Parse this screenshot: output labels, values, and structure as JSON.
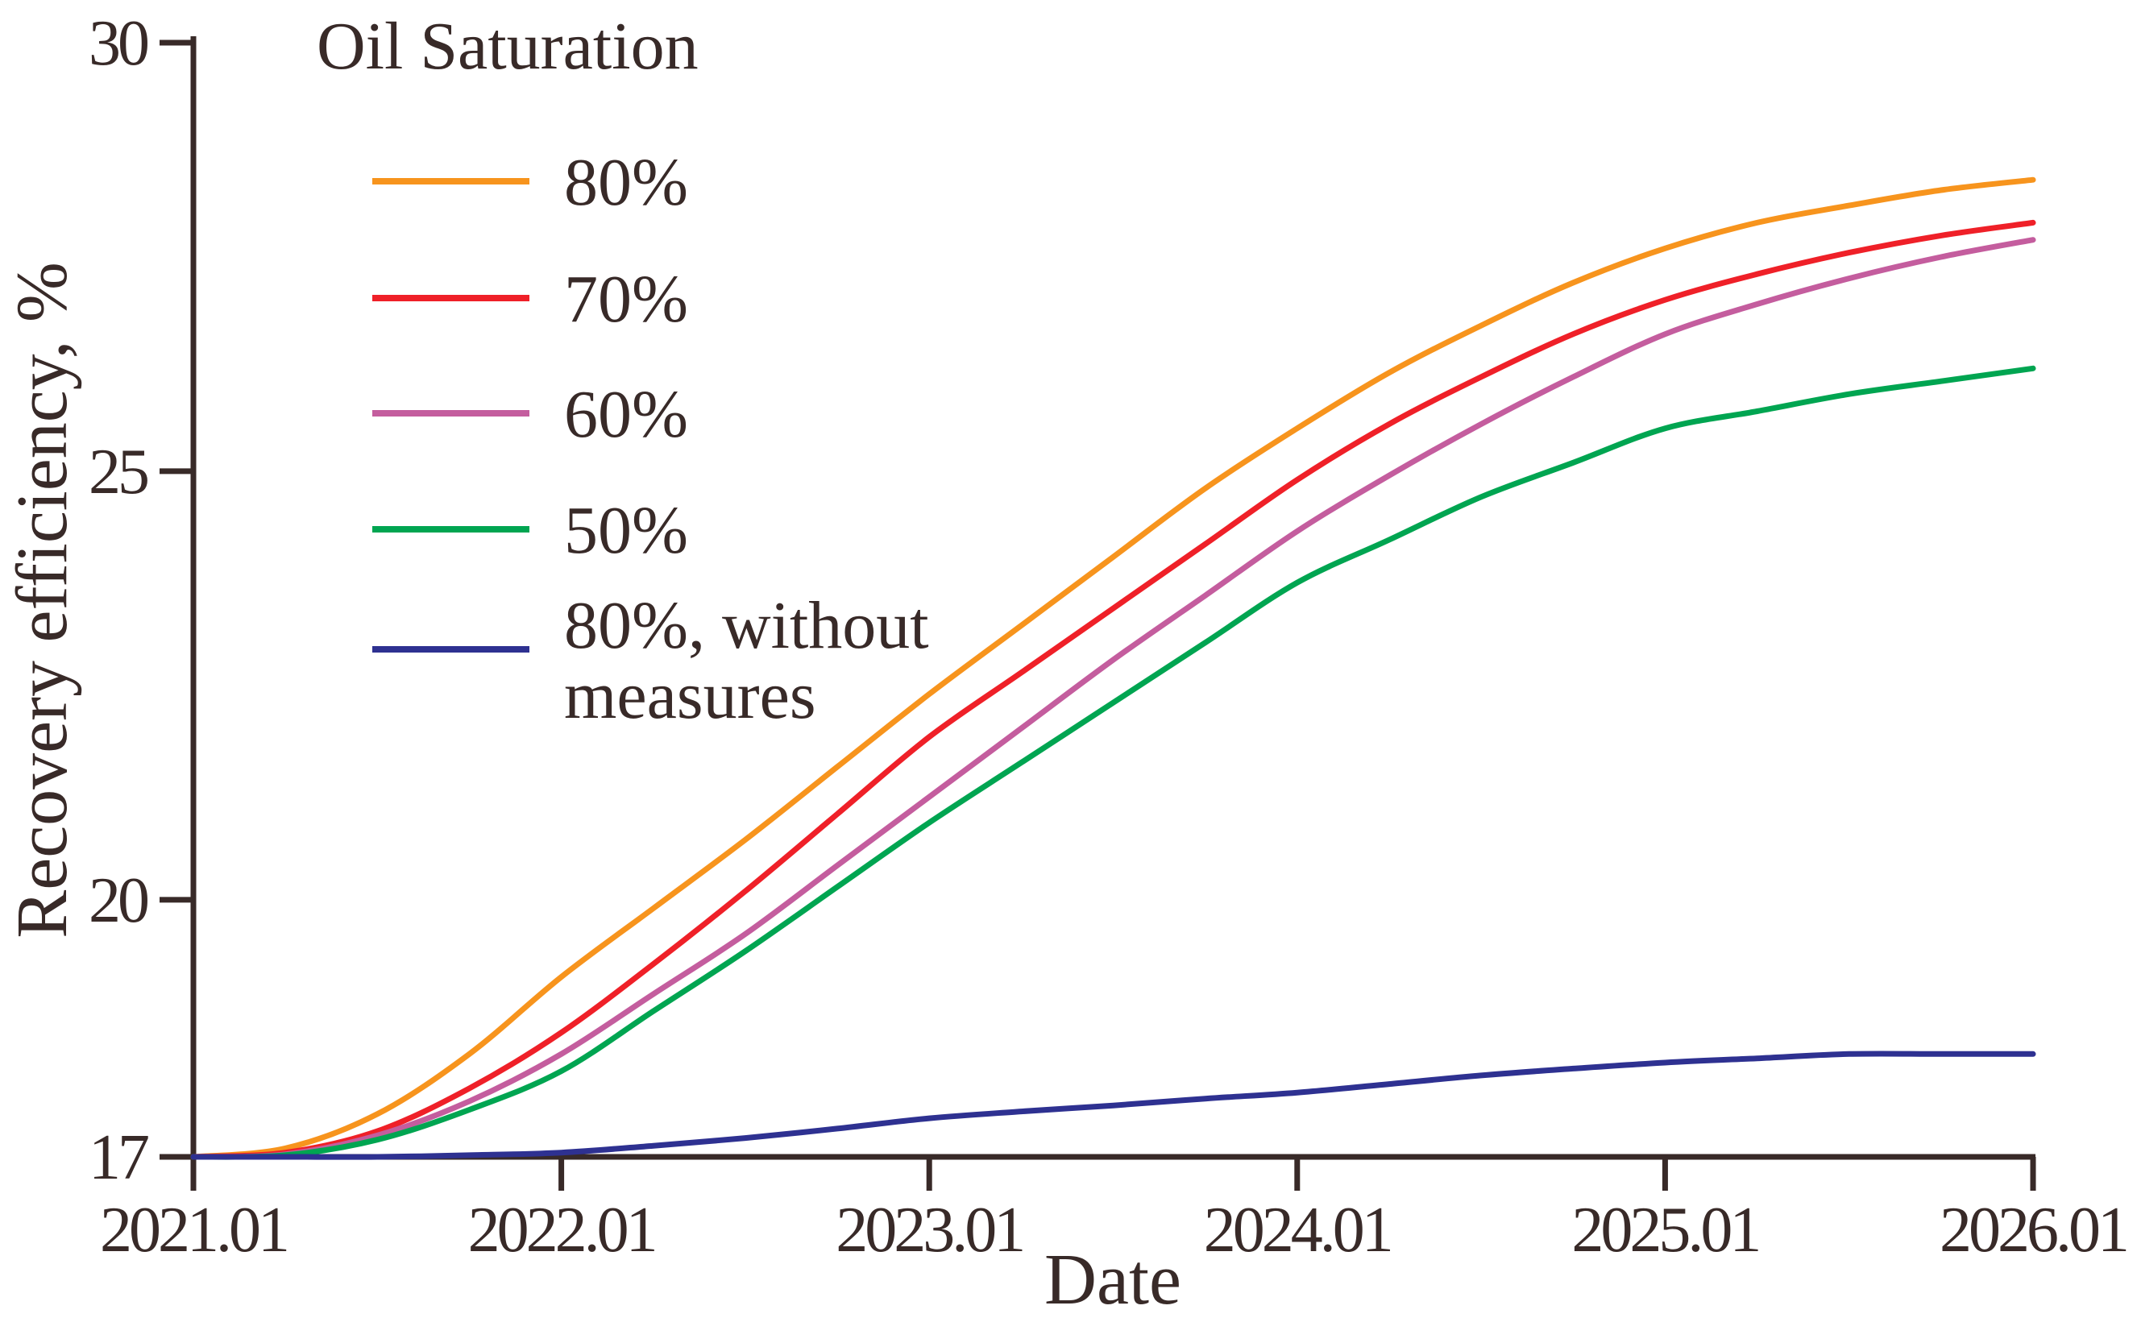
{
  "chart_data": {
    "type": "line",
    "title": "",
    "legend_title": "Oil Saturation",
    "xlabel": "Date",
    "ylabel": "Recovery efficiency, %",
    "xlim": [
      2021.0,
      2026.0
    ],
    "ylim": [
      17,
      30
    ],
    "grid": false,
    "legend_position": "top-left-inside",
    "x_tick_values": [
      2021,
      2022,
      2023,
      2024,
      2025,
      2026
    ],
    "x_tick_labels": [
      "2021.01",
      "2022.01",
      "2023.01",
      "2024.01",
      "2025.01",
      "2026.01"
    ],
    "y_tick_values": [
      17,
      20,
      25,
      30
    ],
    "y_tick_labels": [
      "17",
      "20",
      "25",
      "30"
    ],
    "axis_color": "#382a28",
    "x": [
      2021.0,
      2021.25,
      2021.5,
      2021.75,
      2022.0,
      2022.25,
      2022.5,
      2022.75,
      2023.0,
      2023.25,
      2023.5,
      2023.75,
      2024.0,
      2024.25,
      2024.5,
      2024.75,
      2025.0,
      2025.25,
      2025.5,
      2025.75,
      2026.0
    ],
    "series": [
      {
        "name": "80%",
        "color": "#f7941d",
        "values": [
          17.0,
          17.1,
          17.5,
          18.2,
          19.1,
          19.9,
          20.7,
          21.55,
          22.4,
          23.2,
          24.0,
          24.8,
          25.5,
          26.15,
          26.7,
          27.2,
          27.6,
          27.9,
          28.1,
          28.28,
          28.4
        ]
      },
      {
        "name": "70%",
        "color": "#ef2028",
        "values": [
          17.0,
          17.05,
          17.3,
          17.8,
          18.45,
          19.25,
          20.1,
          21.0,
          21.9,
          22.65,
          23.4,
          24.15,
          24.9,
          25.55,
          26.1,
          26.6,
          27.0,
          27.3,
          27.55,
          27.75,
          27.9
        ]
      },
      {
        "name": "60%",
        "color": "#c45d9e",
        "values": [
          17.0,
          17.03,
          17.25,
          17.65,
          18.2,
          18.9,
          19.6,
          20.4,
          21.2,
          22.0,
          22.8,
          23.55,
          24.3,
          24.95,
          25.55,
          26.1,
          26.6,
          26.95,
          27.25,
          27.5,
          27.7
        ]
      },
      {
        "name": "50%",
        "color": "#00a551",
        "values": [
          17.0,
          17.02,
          17.2,
          17.55,
          18.0,
          18.7,
          19.4,
          20.15,
          20.9,
          21.6,
          22.3,
          23.0,
          23.7,
          24.2,
          24.7,
          25.1,
          25.5,
          25.7,
          25.9,
          26.05,
          26.2
        ]
      },
      {
        "name": "80%, without measures",
        "label_lines": [
          "80%, without",
          "measures"
        ],
        "color": "#2e3191",
        "values": [
          17.0,
          17.0,
          17.0,
          17.02,
          17.05,
          17.13,
          17.22,
          17.33,
          17.45,
          17.53,
          17.6,
          17.68,
          17.75,
          17.85,
          17.95,
          18.03,
          18.1,
          18.15,
          18.2,
          18.2,
          18.2
        ]
      }
    ]
  }
}
